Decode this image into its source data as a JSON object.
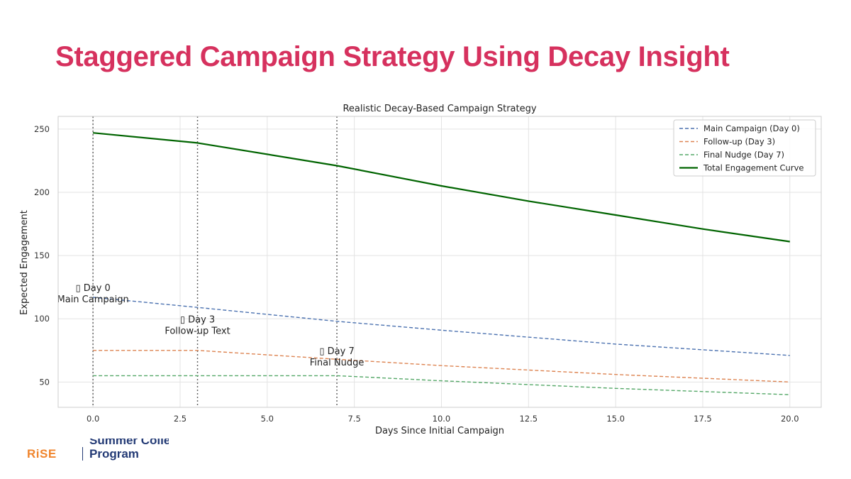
{
  "slide": {
    "title": "Staggered Campaign Strategy Using Decay Insight",
    "title_color": "#d6315e"
  },
  "logo": {
    "mark": "RiSE",
    "line1": "Summer College",
    "line2": "Program",
    "mark_color": "#f0852d",
    "text_color": "#233a75"
  },
  "chart_data": {
    "type": "line",
    "title": "Realistic Decay-Based Campaign Strategy",
    "xlabel": "Days Since Initial Campaign",
    "ylabel": "Expected Engagement",
    "xlim": [
      -1.0,
      20.9
    ],
    "ylim": [
      30,
      260
    ],
    "x_ticks": [
      0.0,
      2.5,
      5.0,
      7.5,
      10.0,
      12.5,
      15.0,
      17.5,
      20.0
    ],
    "x_tick_labels": [
      "0.0",
      "2.5",
      "5.0",
      "7.5",
      "10.0",
      "12.5",
      "15.0",
      "17.5",
      "20.0"
    ],
    "y_ticks": [
      50,
      100,
      150,
      200,
      250
    ],
    "y_tick_labels": [
      "50",
      "100",
      "150",
      "200",
      "250"
    ],
    "grid": true,
    "legend_position": "top-right",
    "series": [
      {
        "name": "Main Campaign (Day 0)",
        "style": "dashed",
        "color": "#4c72b0",
        "x": [
          0,
          3,
          7,
          10,
          15,
          20
        ],
        "y": [
          117,
          109,
          98,
          91,
          80,
          71
        ]
      },
      {
        "name": "Follow-up (Day 3)",
        "style": "dashed",
        "color": "#dd8452",
        "x": [
          0,
          3,
          7,
          10,
          15,
          20
        ],
        "y": [
          75,
          75,
          68,
          63,
          56,
          50
        ]
      },
      {
        "name": "Final Nudge (Day 7)",
        "style": "dashed",
        "color": "#55a868",
        "x": [
          0,
          3,
          7,
          10,
          15,
          20
        ],
        "y": [
          55,
          55,
          55,
          51,
          45,
          40
        ]
      },
      {
        "name": "Total Engagement Curve",
        "style": "solid",
        "color": "#006400",
        "x": [
          0,
          3,
          7,
          10,
          12.5,
          15,
          17.5,
          20
        ],
        "y": [
          247,
          239,
          221,
          205,
          193,
          182,
          171,
          161
        ]
      }
    ],
    "vlines": [
      0,
      3,
      7
    ],
    "annotations": [
      {
        "icon": "▯",
        "line1": "Day 0",
        "line2": "Main Campaign",
        "x": 0,
        "y": 122
      },
      {
        "icon": "▯",
        "line1": "Day 3",
        "line2": "Follow-up Text",
        "x": 3,
        "y": 97
      },
      {
        "icon": "▯",
        "line1": "Day 7",
        "line2": "Final Nudge",
        "x": 7,
        "y": 72
      }
    ]
  }
}
